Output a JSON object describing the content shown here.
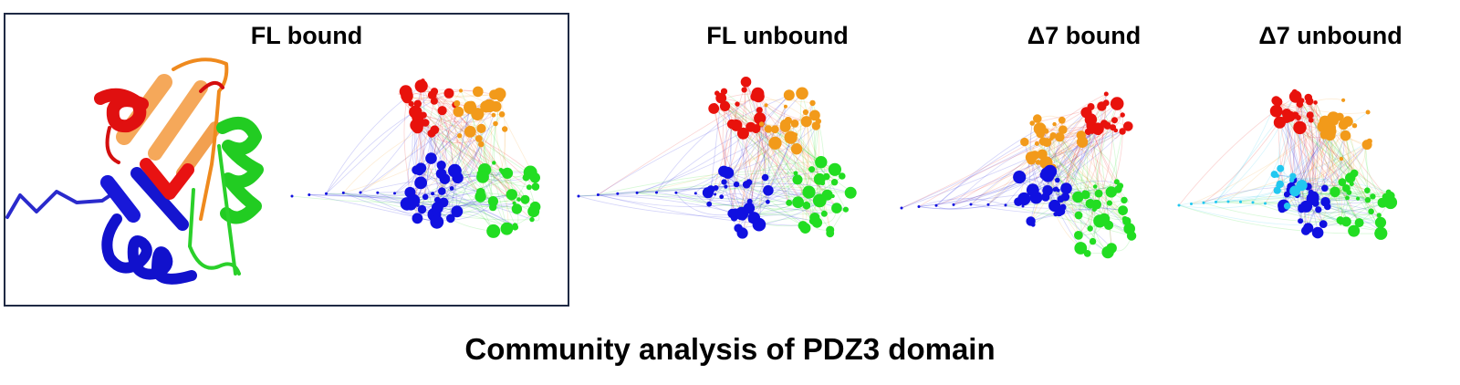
{
  "panels": {
    "fl_bound": "FL bound",
    "fl_unbound": "FL unbound",
    "d7_bound": "Δ7 bound",
    "d7_unbound": "Δ7 unbound"
  },
  "caption": "Community analysis of PDZ3 domain",
  "colors": {
    "red": "#e8120c",
    "orange": "#f29a1a",
    "green": "#22dd22",
    "blue": "#1010e0",
    "cyan": "#22c8f0",
    "ribbon_orange": "#f5a85a",
    "frame": "#1f2a44"
  }
}
